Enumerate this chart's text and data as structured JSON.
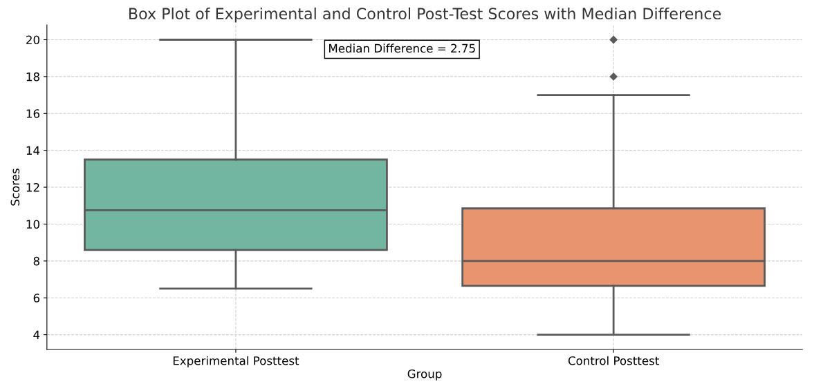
{
  "chart_data": {
    "type": "box",
    "title": "Box Plot of Experimental and Control Post-Test Scores with Median Difference",
    "xlabel": "Group",
    "ylabel": "Scores",
    "categories": [
      "Experimental Posttest",
      "Control Posttest"
    ],
    "boxes": [
      {
        "low": 6.5,
        "q1": 8.6,
        "median": 10.75,
        "q3": 13.5,
        "high": 20
      },
      {
        "low": 4,
        "q1": 6.65,
        "median": 8,
        "q3": 10.85,
        "high": 17,
        "outliers": [
          18,
          20
        ]
      }
    ],
    "colors": [
      "#72b6a1",
      "#e8956f"
    ],
    "ylim": [
      3.2,
      20.8
    ],
    "yticks": [
      4,
      6,
      8,
      10,
      12,
      14,
      16,
      18,
      20
    ],
    "grid": true,
    "annotations": [
      "Median Difference = 2.75"
    ]
  }
}
